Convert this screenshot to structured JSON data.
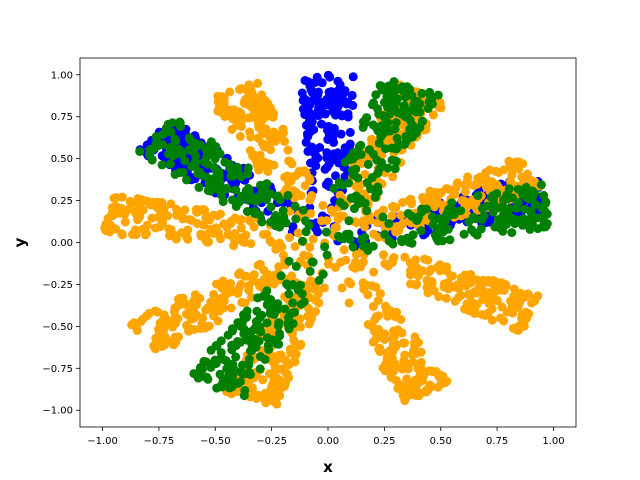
{
  "chart_data": {
    "type": "scatter",
    "xlabel": "x",
    "ylabel": "y",
    "xlim": [
      -1.1,
      1.1
    ],
    "ylim": [
      -1.1,
      1.1
    ],
    "x_ticks": [
      "−1.00",
      "−0.75",
      "−0.50",
      "−0.25",
      "0.00",
      "0.25",
      "0.50",
      "0.75",
      "1.00"
    ],
    "y_ticks": [
      "−1.00",
      "−0.75",
      "−0.50",
      "−0.25",
      "0.00",
      "0.25",
      "0.50",
      "0.75",
      "1.00"
    ],
    "x_tick_values": [
      -1.0,
      -0.75,
      -0.5,
      -0.25,
      0.0,
      0.25,
      0.5,
      0.75,
      1.0
    ],
    "y_tick_values": [
      -1.0,
      -0.75,
      -0.5,
      -0.25,
      0.0,
      0.25,
      0.5,
      0.75,
      1.0
    ],
    "grid": false,
    "legend": "none",
    "series": [
      {
        "color": "#0000ff",
        "arm_angles_deg": [
          90,
          140,
          17.5
        ],
        "arm_length": 1.0,
        "arm_width": 0.12
      },
      {
        "color": "#ffa500",
        "arm_angles_deg": [
          65,
          115,
          170,
          215,
          250,
          296,
          335,
          24
        ],
        "arm_length": 1.0,
        "arm_width": 0.12
      },
      {
        "color": "#008000",
        "arm_angles_deg": [
          68,
          140,
          13,
          240
        ],
        "arm_length": 1.0,
        "arm_width": 0.14
      }
    ]
  }
}
